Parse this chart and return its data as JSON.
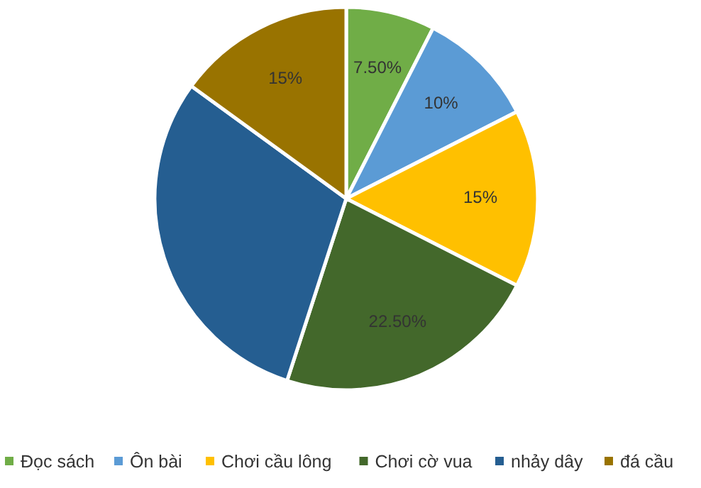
{
  "chart_data": {
    "type": "pie",
    "categories": [
      "Đọc sách",
      "Ôn bài",
      "Chơi cầu lông",
      "Chơi cờ vua",
      "nhảy dây",
      "đá cầu"
    ],
    "values": [
      7.5,
      10,
      15,
      22.5,
      30,
      15
    ],
    "colors": [
      "#70ad47",
      "#5b9bd5",
      "#ffc000",
      "#43682b",
      "#255e91",
      "#997300"
    ],
    "value_labels": [
      "7.50%",
      "10%",
      "15%",
      "22.50%",
      null,
      "15%"
    ],
    "legend": "bottom"
  }
}
